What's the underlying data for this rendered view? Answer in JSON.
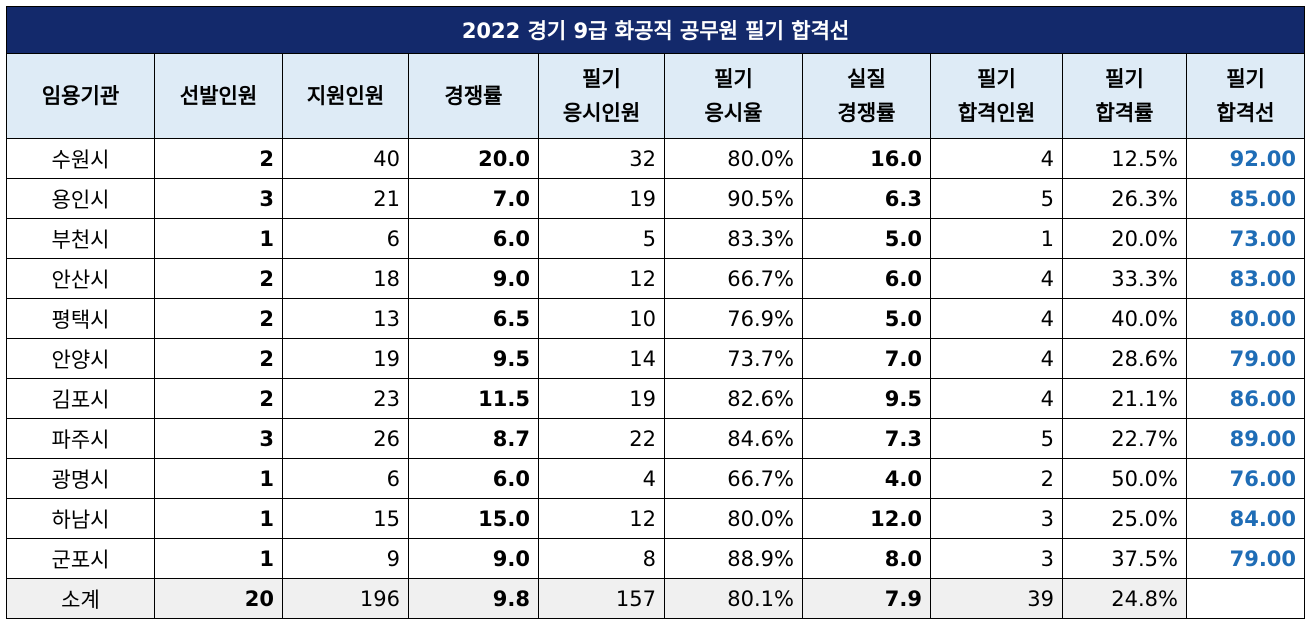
{
  "table": {
    "title": "2022 경기 9급 화공직 공무원 필기 합격선",
    "headers": [
      [
        "임용기관"
      ],
      [
        "선발인원"
      ],
      [
        "지원인원"
      ],
      [
        "경쟁률"
      ],
      [
        "필기",
        "응시인원"
      ],
      [
        "필기",
        "응시율"
      ],
      [
        "실질",
        "경쟁률"
      ],
      [
        "필기",
        "합격인원"
      ],
      [
        "필기",
        "합격률"
      ],
      [
        "필기",
        "합격선"
      ]
    ],
    "rows": [
      [
        "수원시",
        "2",
        "40",
        "20.0",
        "32",
        "80.0%",
        "16.0",
        "4",
        "12.5%",
        "92.00"
      ],
      [
        "용인시",
        "3",
        "21",
        "7.0",
        "19",
        "90.5%",
        "6.3",
        "5",
        "26.3%",
        "85.00"
      ],
      [
        "부천시",
        "1",
        "6",
        "6.0",
        "5",
        "83.3%",
        "5.0",
        "1",
        "20.0%",
        "73.00"
      ],
      [
        "안산시",
        "2",
        "18",
        "9.0",
        "12",
        "66.7%",
        "6.0",
        "4",
        "33.3%",
        "83.00"
      ],
      [
        "평택시",
        "2",
        "13",
        "6.5",
        "10",
        "76.9%",
        "5.0",
        "4",
        "40.0%",
        "80.00"
      ],
      [
        "안양시",
        "2",
        "19",
        "9.5",
        "14",
        "73.7%",
        "7.0",
        "4",
        "28.6%",
        "79.00"
      ],
      [
        "김포시",
        "2",
        "23",
        "11.5",
        "19",
        "82.6%",
        "9.5",
        "4",
        "21.1%",
        "86.00"
      ],
      [
        "파주시",
        "3",
        "26",
        "8.7",
        "22",
        "84.6%",
        "7.3",
        "5",
        "22.7%",
        "89.00"
      ],
      [
        "광명시",
        "1",
        "6",
        "6.0",
        "4",
        "66.7%",
        "4.0",
        "2",
        "50.0%",
        "76.00"
      ],
      [
        "하남시",
        "1",
        "15",
        "15.0",
        "12",
        "80.0%",
        "12.0",
        "3",
        "25.0%",
        "84.00"
      ],
      [
        "군포시",
        "1",
        "9",
        "9.0",
        "8",
        "88.9%",
        "8.0",
        "3",
        "37.5%",
        "79.00"
      ]
    ],
    "total": [
      "소계",
      "20",
      "196",
      "9.8",
      "157",
      "80.1%",
      "7.9",
      "39",
      "24.8%",
      ""
    ]
  },
  "colors": {
    "title_bg": "#13296b",
    "header_bg": "#deebf6",
    "total_bg": "#f0f0f0",
    "pass_line_text": "#1f6db6"
  }
}
